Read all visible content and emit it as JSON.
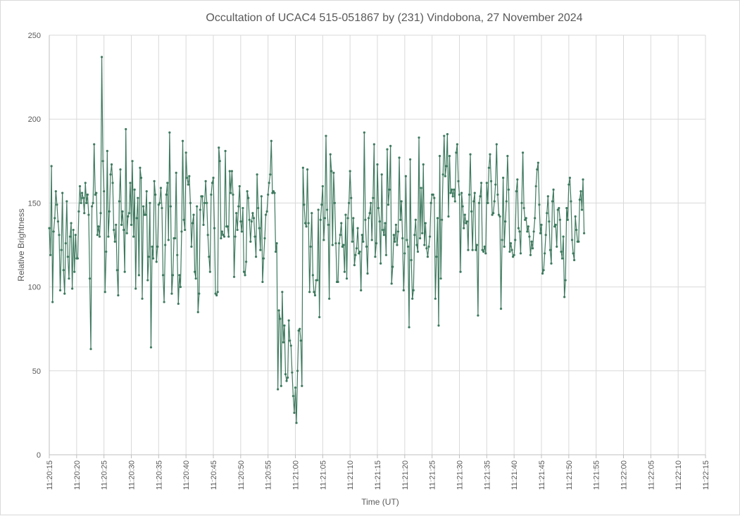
{
  "chart_data": {
    "type": "line",
    "title": "Occultation of UCAC4 515-051867 by (231) Vindobona, 27 November 2024",
    "xlabel": "Time (UT)",
    "ylabel": "Relative Brightness",
    "x_range": [
      "11:20:15",
      "11:22:15"
    ],
    "x_ticks": [
      "11:20:15",
      "11:20:20",
      "11:20:25",
      "11:20:30",
      "11:20:35",
      "11:20:40",
      "11:20:45",
      "11:20:50",
      "11:20:55",
      "11:21:00",
      "11:21:05",
      "11:21:10",
      "11:21:15",
      "11:21:20",
      "11:21:25",
      "11:21:30",
      "11:21:35",
      "11:21:40",
      "11:21:45",
      "11:21:50",
      "11:21:55",
      "11:22:00",
      "11:22:05",
      "11:22:10",
      "11:22:15"
    ],
    "ylim": [
      0,
      250
    ],
    "y_ticks": [
      0,
      50,
      100,
      150,
      200,
      250
    ],
    "grid": true,
    "legend": "none",
    "line_color": "#3e7a5f",
    "series": [
      {
        "sample_interval_s": 0.2,
        "values": [
          135,
          119,
          172,
          91,
          133,
          141,
          157,
          149,
          139,
          131,
          98,
          122,
          156,
          110,
          96,
          126,
          151,
          118,
          105,
          130,
          138,
          99,
          134,
          109,
          131,
          117,
          117,
          145,
          160,
          150,
          156,
          153,
          144,
          162,
          150,
          155,
          143,
          105,
          63,
          148,
          150,
          185,
          155,
          156,
          131,
          136,
          130,
          144,
          237,
          175,
          157,
          97,
          121,
          181,
          130,
          145,
          167,
          173,
          162,
          134,
          127,
          137,
          110,
          95,
          151,
          170,
          137,
          145,
          134,
          109,
          194,
          132,
          142,
          144,
          162,
          137,
          175,
          130,
          158,
          99,
          141,
          153,
          107,
          171,
          165,
          93,
          148,
          143,
          143,
          157,
          104,
          118,
          150,
          64,
          124,
          117,
          163,
          155,
          115,
          124,
          149,
          150,
          159,
          147,
          107,
          91,
          125,
          155,
          162,
          128,
          192,
          148,
          96,
          107,
          129,
          129,
          168,
          119,
          90,
          107,
          100,
          133,
          187,
          140,
          134,
          180,
          165,
          161,
          166,
          150,
          124,
          138,
          143,
          109,
          105,
          148,
          85,
          96,
          146,
          154,
          154,
          137,
          150,
          163,
          150,
          131,
          118,
          109,
          155,
          162,
          165,
          135,
          96,
          95,
          97,
          183,
          175,
          129,
          133,
          131,
          130,
          181,
          136,
          136,
          130,
          169,
          156,
          169,
          155,
          106,
          130,
          144,
          134,
          148,
          160,
          139,
          133,
          147,
          109,
          107,
          115,
          157,
          153,
          140,
          127,
          139,
          144,
          141,
          130,
          118,
          167,
          147,
          135,
          122,
          154,
          103,
          117,
          129,
          143,
          145,
          155,
          162,
          167,
          187,
          156,
          157,
          156,
          121,
          126,
          39,
          86,
          81,
          41,
          97,
          67,
          77,
          48,
          44,
          46,
          80,
          68,
          65,
          49,
          35,
          25,
          40,
          19,
          50,
          74,
          75,
          68,
          41,
          171,
          149,
          138,
          136,
          170,
          138,
          97,
          124,
          144,
          107,
          97,
          95,
          104,
          104,
          146,
          82,
          140,
          149,
          160,
          128,
          141,
          190,
          146,
          137,
          93,
          179,
          169,
          125,
          168,
          150,
          126,
          103,
          103,
          126,
          131,
          138,
          124,
          125,
          109,
          143,
          105,
          141,
          150,
          169,
          153,
          127,
          141,
          113,
          119,
          123,
          135,
          120,
          121,
          98,
          131,
          127,
          192,
          140,
          124,
          108,
          141,
          144,
          150,
          128,
          153,
          185,
          118,
          126,
          173,
          147,
          139,
          114,
          167,
          134,
          131,
          138,
          119,
          182,
          149,
          158,
          184,
          102,
          112,
          131,
          127,
          137,
          125,
          133,
          177,
          140,
          151,
          129,
          98,
          120,
          166,
          128,
          124,
          76,
          176,
          116,
          93,
          98,
          131,
          140,
          125,
          121,
          189,
          129,
          159,
          132,
          173,
          125,
          138,
          123,
          118,
          124,
          130,
          150,
          155,
          155,
          153,
          93,
          118,
          141,
          77,
          178,
          105,
          140,
          167,
          190,
          166,
          172,
          191,
          142,
          178,
          156,
          158,
          154,
          158,
          151,
          180,
          185,
          163,
          155,
          109,
          156,
          148,
          135,
          143,
          138,
          139,
          122,
          155,
          179,
          145,
          122,
          151,
          156,
          122,
          125,
          83,
          150,
          154,
          162,
          122,
          121,
          124,
          120,
          162,
          150,
          171,
          179,
          163,
          143,
          144,
          151,
          161,
          185,
          155,
          143,
          142,
          87,
          128,
          165,
          124,
          139,
          151,
          178,
          158,
          121,
          126,
          122,
          118,
          119,
          128,
          157,
          164,
          135,
          133,
          120,
          150,
          180,
          147,
          140,
          141,
          133,
          136,
          130,
          119,
          127,
          123,
          133,
          141,
          160,
          170,
          174,
          149,
          132,
          137,
          108,
          110,
          120,
          131,
          144,
          154,
          139,
          122,
          114,
          151,
          158,
          136,
          137,
          124,
          146,
          147,
          140,
          121,
          117,
          130,
          94,
          104,
          147,
          140,
          161,
          165,
          151,
          128,
          120,
          116,
          142,
          134,
          127,
          127,
          152,
          157,
          146,
          164,
          132
        ]
      }
    ]
  }
}
